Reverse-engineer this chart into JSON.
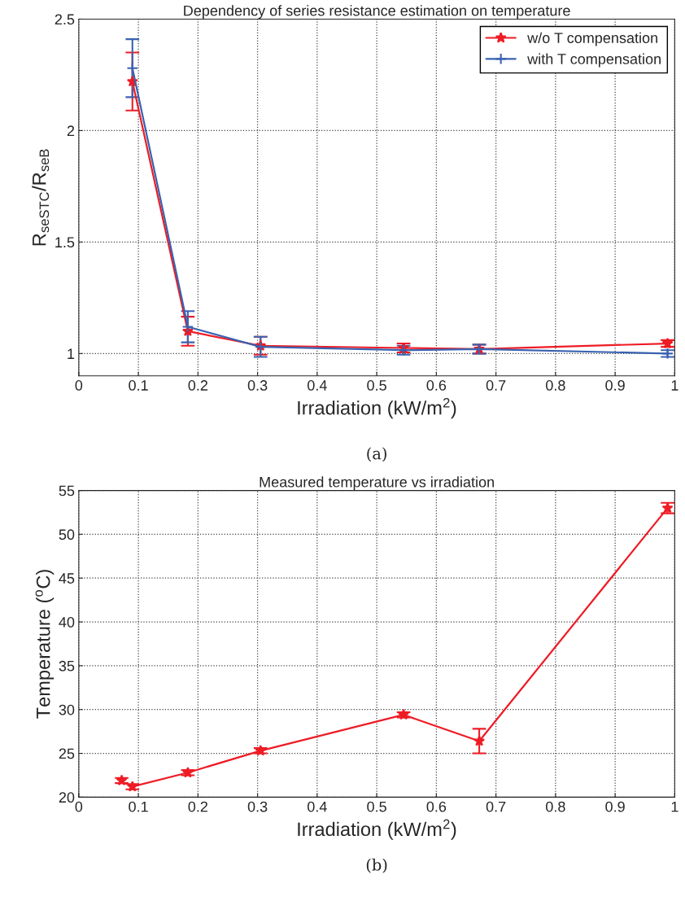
{
  "chart_data": [
    {
      "type": "line",
      "title": "Dependency of series resistance estimation on temperature",
      "xlabel": "Irradiation (kW/m$^{2}$)",
      "ylabel": "R$_{seSTC}$/R$_{seB}$",
      "annotations": [
        "(a)"
      ],
      "x": [
        0.09,
        0.183,
        0.305,
        0.545,
        0.672,
        0.988
      ],
      "series": [
        {
          "name": "w/o T compensation",
          "color": "#ee1c25",
          "marker": "star",
          "values": [
            2.22,
            1.1,
            1.035,
            1.025,
            1.02,
            1.045
          ],
          "errors": [
            0.13,
            0.065,
            0.04,
            0.02,
            0.02,
            0.015
          ]
        },
        {
          "name": "with T compensation",
          "color": "#3a62b0",
          "marker": "cross",
          "values": [
            2.28,
            1.12,
            1.03,
            1.015,
            1.02,
            1.0
          ],
          "errors": [
            0.13,
            0.07,
            0.045,
            0.02,
            0.02,
            0.015
          ]
        }
      ],
      "xlim": [
        0,
        1
      ],
      "xticks": [
        0,
        0.1,
        0.2,
        0.3,
        0.4,
        0.5,
        0.6,
        0.7,
        0.8,
        0.9,
        1
      ],
      "ylim": [
        0.9,
        2.5
      ],
      "yticks": [
        1,
        1.5,
        2,
        2.5
      ],
      "grid": true,
      "legend": "top right",
      "line_style": "solid"
    },
    {
      "type": "line",
      "title": "Measured temperature vs irradiation",
      "xlabel": "Irradiation (kW/m$^{2}$)",
      "ylabel": "Temperature ($^{o}$C)",
      "annotations": [
        "(b)"
      ],
      "series": [
        {
          "color": "#ee1c25",
          "marker": "star",
          "x": [
            0.09,
            0.183,
            0.305,
            0.545,
            0.672,
            0.988
          ],
          "values": [
            21.2,
            22.8,
            25.3,
            29.4,
            26.4,
            53.0
          ],
          "errors": [
            0.3,
            0.3,
            0.3,
            0.3,
            1.4,
            0.6
          ]
        },
        {
          "type": "scatter",
          "color": "#ee1c25",
          "marker": "star",
          "x": [
            0.072
          ],
          "values": [
            21.9
          ],
          "errors": [
            0.3
          ]
        }
      ],
      "xlim": [
        0,
        1
      ],
      "xticks": [
        0,
        0.1,
        0.2,
        0.3,
        0.4,
        0.5,
        0.6,
        0.7,
        0.8,
        0.9,
        1
      ],
      "ylim": [
        20,
        55
      ],
      "yticks": [
        20,
        25,
        30,
        35,
        40,
        45,
        50,
        55
      ],
      "grid": true,
      "line_style": "solid"
    }
  ]
}
